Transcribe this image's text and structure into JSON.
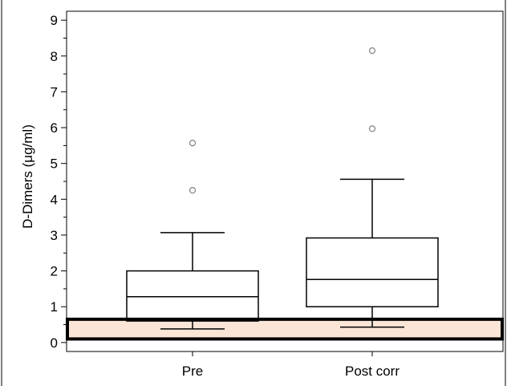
{
  "chart_data": {
    "type": "box",
    "title": "",
    "xlabel": "",
    "ylabel": "D-Dimers (μg/ml)",
    "ylim": [
      -0.25,
      9.25
    ],
    "yticks": [
      0,
      1,
      2,
      3,
      4,
      5,
      6,
      7,
      8,
      9
    ],
    "categories": [
      "Pre",
      "Post corr"
    ],
    "boxes": [
      {
        "category": "Pre",
        "whisker_low": 0.38,
        "q1": 0.6,
        "median": 1.28,
        "q3": 2.0,
        "whisker_high": 3.07,
        "outliers": [
          4.25,
          5.57
        ]
      },
      {
        "category": "Post corr",
        "whisker_low": 0.43,
        "q1": 1.0,
        "median": 1.76,
        "q3": 2.92,
        "whisker_high": 4.56,
        "outliers": [
          5.97,
          8.15
        ]
      }
    ],
    "reference_band": {
      "low": 0.1,
      "high": 0.65,
      "fill": "#fbe5d6",
      "stroke": "#000000"
    },
    "colors": {
      "box_stroke": "#000000",
      "outlier_stroke": "#808080",
      "background": "#ffffff"
    },
    "grid": false
  }
}
